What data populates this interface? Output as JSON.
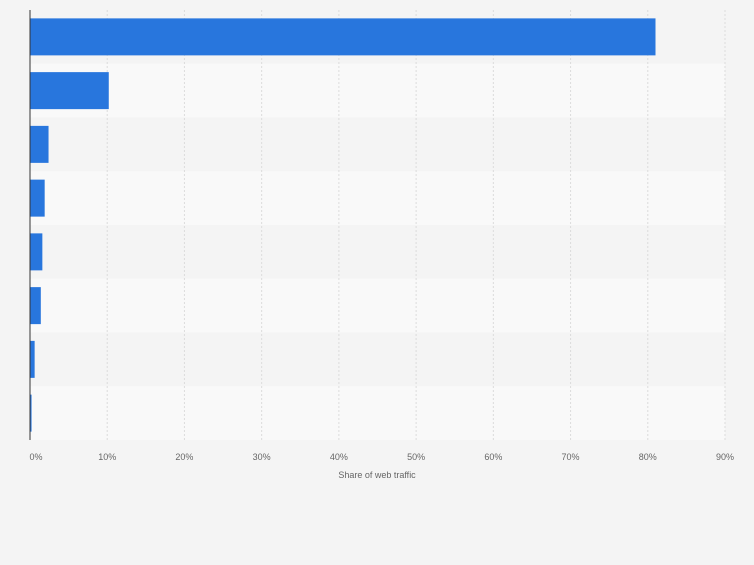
{
  "chart_data": {
    "type": "bar",
    "orientation": "horizontal",
    "categories": [
      "",
      "",
      "",
      "",
      "",
      "",
      "",
      ""
    ],
    "values": [
      81.0,
      10.2,
      2.4,
      1.9,
      1.6,
      1.4,
      0.6,
      0.2
    ],
    "xlabel": "Share of web traffic",
    "xlim": [
      0,
      90
    ],
    "xticks": [
      "0%",
      "10%",
      "20%",
      "30%",
      "40%",
      "50%",
      "60%",
      "70%",
      "80%",
      "90%"
    ],
    "grid": true,
    "colors": {
      "bar": "#2876dd",
      "row_odd": "#f4f4f4",
      "row_even": "#f9f9f9",
      "grid": "#dcdcdc",
      "axis": "#333333",
      "tick_text": "#666666"
    }
  }
}
